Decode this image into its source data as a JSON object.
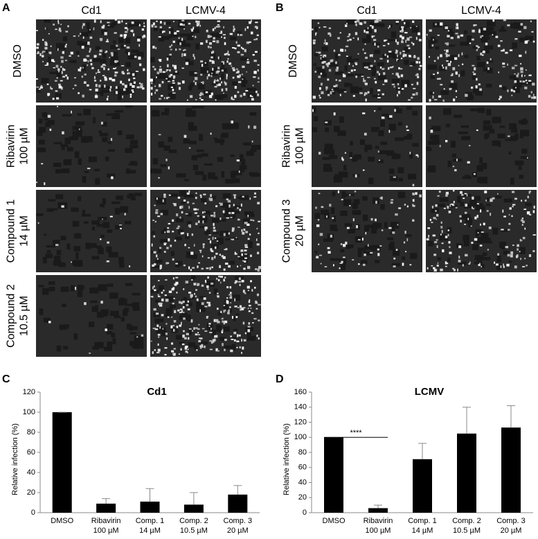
{
  "panels": {
    "a": {
      "letter": "A",
      "columns": [
        "Cd1",
        "LCMV-4"
      ],
      "rows": [
        [
          "DMSO"
        ],
        [
          "Ribavirin",
          "100 µM"
        ],
        [
          "Compound 1",
          "14 µM"
        ],
        [
          "Compound 2",
          "10.5 µM"
        ]
      ]
    },
    "b": {
      "letter": "B",
      "columns": [
        "Cd1",
        "LCMV-4"
      ],
      "rows": [
        [
          "DMSO"
        ],
        [
          "Ribavirin",
          "100 µM"
        ],
        [
          "Compound 3",
          "20 µM"
        ]
      ]
    }
  },
  "chart_data": [
    {
      "type": "bar",
      "letter": "C",
      "title": "Cd1",
      "ylabel": "Relative infection (%)",
      "categories": [
        [
          "DMSO"
        ],
        [
          "Ribavirin",
          "100 µM"
        ],
        [
          "Comp. 1",
          "14 µM"
        ],
        [
          "Comp. 2",
          "10.5 µM"
        ],
        [
          "Comp. 3",
          "20 µM"
        ]
      ],
      "values": [
        100,
        9,
        11,
        8,
        18
      ],
      "errors": [
        0,
        5,
        13,
        12,
        9
      ],
      "color": "#000000",
      "ylim": [
        0,
        120
      ],
      "yticks": [
        0,
        20,
        40,
        60,
        80,
        100,
        120
      ]
    },
    {
      "type": "bar",
      "letter": "D",
      "title": "LCMV",
      "ylabel": "Relative infection (%)",
      "categories": [
        [
          "DMSO"
        ],
        [
          "Ribavirin",
          "100 µM"
        ],
        [
          "Comp. 1",
          "14 µM"
        ],
        [
          "Comp. 2",
          "10.5 µM"
        ],
        [
          "Comp. 3",
          "20 µM"
        ]
      ],
      "values": [
        100,
        6,
        71,
        105,
        113
      ],
      "errors": [
        0,
        4,
        21,
        35,
        29
      ],
      "color": "#000000",
      "ylim": [
        0,
        160
      ],
      "yticks": [
        0,
        20,
        40,
        60,
        80,
        100,
        120,
        140,
        160
      ],
      "annotation": "****"
    }
  ]
}
